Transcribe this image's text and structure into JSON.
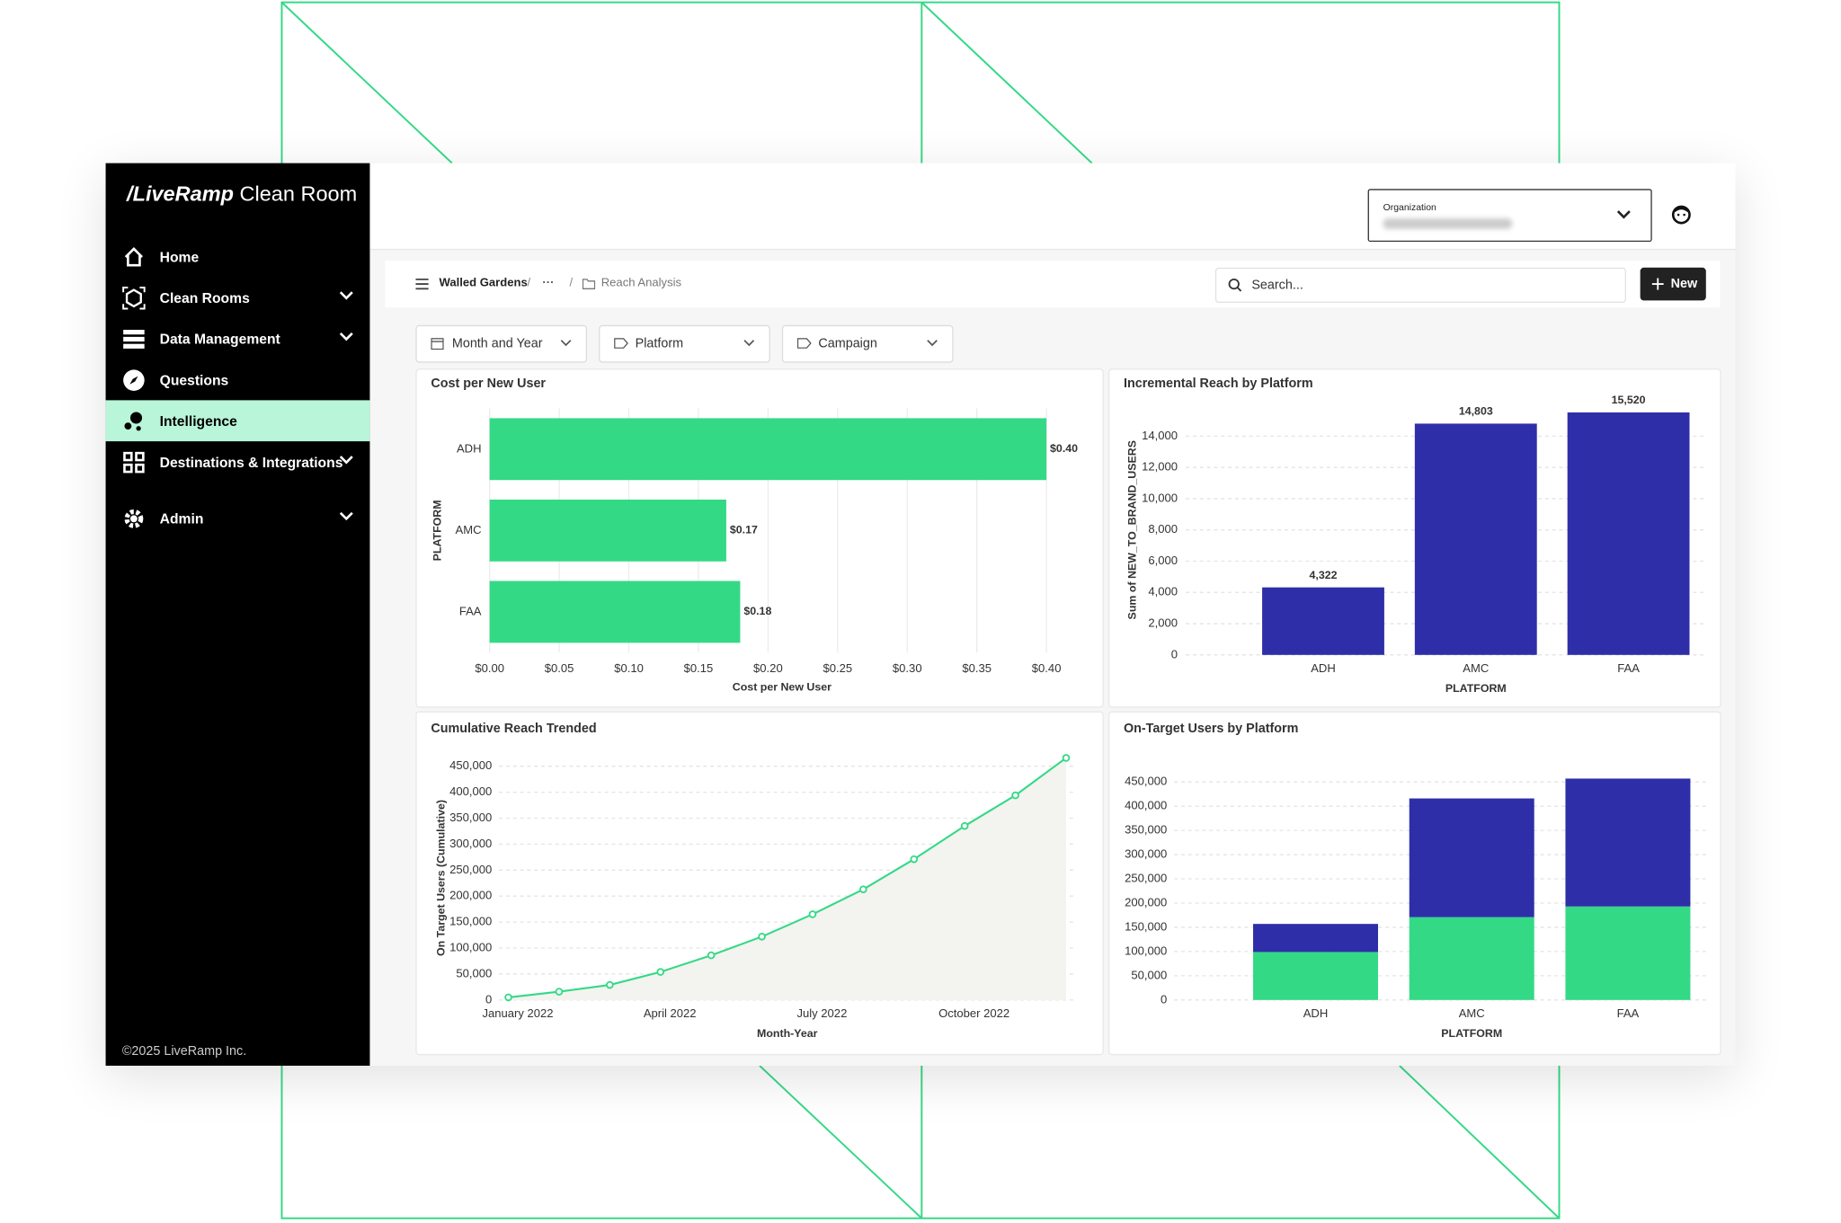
{
  "sidebar": {
    "logo_brand": "/LiveRamp",
    "logo_product": "Clean Room",
    "items": [
      {
        "label": "Home"
      },
      {
        "label": "Clean Rooms"
      },
      {
        "label": "Data Management"
      },
      {
        "label": "Questions"
      },
      {
        "label": "Intelligence"
      },
      {
        "label": "Destinations & Integrations"
      },
      {
        "label": "Admin"
      }
    ],
    "footer": "©2025 LiveRamp Inc."
  },
  "header": {
    "organization_label": "Organization"
  },
  "breadcrumb": {
    "items": [
      "Walled Gardens",
      "···",
      "Reach Analysis"
    ],
    "separator": "/"
  },
  "search": {
    "placeholder": "Search..."
  },
  "new_button": "New",
  "filters": [
    "Month and Year",
    "Platform",
    "Campaign"
  ],
  "chart_data": [
    {
      "type": "bar",
      "orientation": "horizontal",
      "title": "Cost per New User",
      "categories": [
        "ADH",
        "AMC",
        "FAA"
      ],
      "values": [
        0.4,
        0.17,
        0.18
      ],
      "value_labels": [
        "$0.40",
        "$0.17",
        "$0.18"
      ],
      "color": "#34d986",
      "xlim": [
        0,
        0.42
      ],
      "xticks": [
        {
          "value": 0,
          "label": "$0.00"
        },
        {
          "value": 0.05,
          "label": "$0.05"
        },
        {
          "value": 0.1,
          "label": "$0.10"
        },
        {
          "value": 0.15,
          "label": "$0.15"
        },
        {
          "value": 0.2,
          "label": "$0.20"
        },
        {
          "value": 0.25,
          "label": "$0.25"
        },
        {
          "value": 0.3,
          "label": "$0.30"
        },
        {
          "value": 0.35,
          "label": "$0.35"
        },
        {
          "value": 0.4,
          "label": "$0.40"
        }
      ],
      "xlabel": "Cost per New User",
      "ylabel": "PLATFORM",
      "grid": true
    },
    {
      "type": "bar",
      "title": "Incremental Reach by Platform",
      "categories": [
        "ADH",
        "AMC",
        "FAA"
      ],
      "values": [
        4322,
        14803,
        15520
      ],
      "value_labels": [
        "4,322",
        "14,803",
        "15,520"
      ],
      "color": "#2e2fa8",
      "ylim": [
        0,
        16000
      ],
      "yticks": [
        0,
        {
          "value": 2000,
          "label": "2,000"
        },
        {
          "value": 4000,
          "label": "4,000"
        },
        {
          "value": 6000,
          "label": "6,000"
        },
        {
          "value": 8000,
          "label": "8,000"
        },
        {
          "value": 10000,
          "label": "10,000"
        },
        {
          "value": 12000,
          "label": "12,000"
        },
        {
          "value": 14000,
          "label": "14,000"
        }
      ],
      "xlabel": "PLATFORM",
      "ylabel": "Sum of NEW_TO_BRAND_USERS",
      "grid": true
    },
    {
      "type": "line",
      "title": "Cumulative Reach Trended",
      "categories": [
        "January 2022",
        null,
        null,
        "April 2022",
        null,
        null,
        "July 2022",
        null,
        null,
        "October 2022",
        null,
        null
      ],
      "values": [
        5000,
        16000,
        29000,
        54000,
        86000,
        122000,
        165000,
        213000,
        271000,
        335000,
        394000,
        466000
      ],
      "color": "#34d986",
      "area": true,
      "ylim": [
        0,
        470000
      ],
      "yticks": [
        0,
        {
          "value": 50000,
          "label": "50,000"
        },
        {
          "value": 100000,
          "label": "100,000"
        },
        {
          "value": 150000,
          "label": "150,000"
        },
        {
          "value": 200000,
          "label": "200,000"
        },
        {
          "value": 250000,
          "label": "250,000"
        },
        {
          "value": 300000,
          "label": "300,000"
        },
        {
          "value": 350000,
          "label": "350,000"
        },
        {
          "value": 400000,
          "label": "400,000"
        },
        {
          "value": 450000,
          "label": "450,000"
        }
      ],
      "xlabel": "Month-Year",
      "ylabel": "On Target Users (Cumulative)",
      "grid": true
    },
    {
      "type": "bar",
      "stacked": true,
      "title": "On-Target Users by Platform",
      "categories": [
        "ADH",
        "AMC",
        "FAA"
      ],
      "series": [
        {
          "color": "#34d986",
          "values": [
            99000,
            171000,
            193000
          ]
        },
        {
          "color": "#2e2fa8",
          "values": [
            58000,
            245000,
            264000
          ]
        }
      ],
      "ylim": [
        0,
        470000
      ],
      "yticks": [
        0,
        {
          "value": 50000,
          "label": "50,000"
        },
        {
          "value": 100000,
          "label": "100,000"
        },
        {
          "value": 150000,
          "label": "150,000"
        },
        {
          "value": 200000,
          "label": "200,000"
        },
        {
          "value": 250000,
          "label": "250,000"
        },
        {
          "value": 300000,
          "label": "300,000"
        },
        {
          "value": 350000,
          "label": "350,000"
        },
        {
          "value": 400000,
          "label": "400,000"
        },
        {
          "value": 450000,
          "label": "450,000"
        }
      ],
      "xlabel": "PLATFORM",
      "grid": true
    }
  ]
}
